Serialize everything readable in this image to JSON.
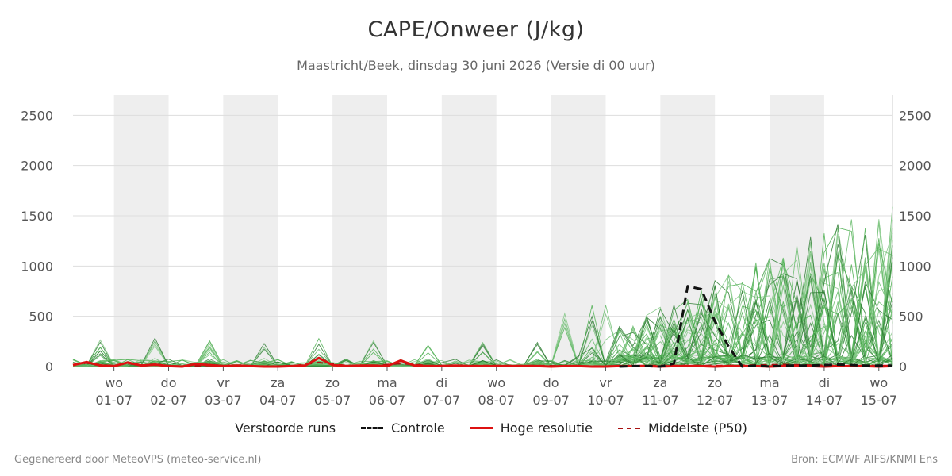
{
  "header": {
    "title": "CAPE/Onweer (J/kg)",
    "subtitle": "Maastricht/Beek, dinsdag 30 juni 2026 (Versie di 00 uur)"
  },
  "footer": {
    "left": "Gegenereerd door MeteoVPS (meteo-service.nl)",
    "right": "Bron: ECMWF AIFS/KNMI Ens"
  },
  "legend": [
    {
      "label": "Verstoorde runs",
      "color": "#5cb85c",
      "style": "thin"
    },
    {
      "label": "Controle",
      "color": "#111111",
      "style": "dashed"
    },
    {
      "label": "Hoge resolutie",
      "color": "#dd1111",
      "style": "solid"
    },
    {
      "label": "Middelste (P50)",
      "color": "#aa1111",
      "style": "dashed"
    }
  ],
  "colors": {
    "members": "#4caf50",
    "control": "#111111",
    "hires": "#dd1111",
    "median": "#aa1111",
    "shade": "#eeeeee",
    "grid": "#dddddd"
  },
  "chart_data": {
    "type": "line",
    "xlim": [
      0,
      15
    ],
    "ylim": [
      0,
      2700
    ],
    "grid": true,
    "yticks": [
      0,
      500,
      1000,
      1500,
      2000,
      2500
    ],
    "weekend_shading_days": [
      [
        0.75,
        1.75
      ],
      [
        2.75,
        3.75
      ],
      [
        4.75,
        5.75
      ],
      [
        6.75,
        7.75
      ],
      [
        8.75,
        9.75
      ],
      [
        10.75,
        11.75
      ],
      [
        12.75,
        13.75
      ]
    ],
    "x_day_labels": [
      {
        "x": 0.75,
        "day": "wo",
        "date": "01-07"
      },
      {
        "x": 1.75,
        "day": "do",
        "date": "02-07"
      },
      {
        "x": 2.75,
        "day": "vr",
        "date": "03-07"
      },
      {
        "x": 3.75,
        "day": "za",
        "date": "04-07"
      },
      {
        "x": 4.75,
        "day": "zo",
        "date": "05-07"
      },
      {
        "x": 5.75,
        "day": "ma",
        "date": "06-07"
      },
      {
        "x": 6.75,
        "day": "di",
        "date": "07-07"
      },
      {
        "x": 7.75,
        "day": "wo",
        "date": "08-07"
      },
      {
        "x": 8.75,
        "day": "do",
        "date": "09-07"
      },
      {
        "x": 9.75,
        "day": "vr",
        "date": "10-07"
      },
      {
        "x": 10.75,
        "day": "za",
        "date": "11-07"
      },
      {
        "x": 11.75,
        "day": "zo",
        "date": "12-07"
      },
      {
        "x": 12.75,
        "day": "ma",
        "date": "13-07"
      },
      {
        "x": 13.75,
        "day": "di",
        "date": "14-07"
      },
      {
        "x": 14.75,
        "day": "wo",
        "date": "15-07"
      }
    ],
    "series": [
      {
        "role": "hires",
        "x": [
          0,
          0.25,
          0.5,
          0.75,
          1,
          1.25,
          1.5,
          1.75,
          2,
          2.25,
          2.5,
          2.75,
          3,
          3.25,
          3.5,
          3.75,
          4,
          4.25,
          4.5,
          4.75,
          5,
          5.25,
          5.5,
          5.75,
          6,
          6.25,
          6.5,
          6.75,
          7,
          7.25,
          7.5,
          7.75,
          8,
          8.25,
          8.5,
          8.75,
          9,
          9.25,
          9.5,
          9.75,
          10,
          10.25,
          10.5,
          10.75,
          11,
          11.25,
          11.5,
          11.75,
          12,
          12.25,
          12.5,
          12.75,
          13,
          13.25,
          13.5,
          13.75,
          14,
          14.25,
          14.5,
          14.75,
          15
        ],
        "y": [
          15,
          45,
          10,
          5,
          40,
          10,
          20,
          5,
          0,
          25,
          15,
          5,
          10,
          5,
          0,
          0,
          5,
          10,
          85,
          15,
          5,
          10,
          10,
          5,
          60,
          10,
          5,
          5,
          10,
          5,
          5,
          5,
          5,
          5,
          5,
          0,
          5,
          5,
          0,
          0,
          5,
          5,
          5,
          0,
          5,
          5,
          5,
          0,
          5,
          5,
          5,
          0,
          5,
          5,
          5,
          0,
          5,
          5,
          5,
          0,
          5
        ]
      },
      {
        "role": "median",
        "x": [
          0,
          0.25,
          0.5,
          0.75,
          1,
          1.25,
          1.5,
          1.75,
          2,
          2.5,
          3,
          3.5,
          4,
          4.5,
          5,
          5.5,
          6,
          6.5,
          7,
          7.5,
          8,
          8.5,
          9,
          9.5,
          10,
          10.5,
          11,
          11.5,
          12,
          12.5,
          13,
          13.5,
          14,
          14.5,
          15
        ],
        "y": [
          20,
          35,
          15,
          10,
          30,
          15,
          15,
          5,
          5,
          10,
          10,
          5,
          5,
          40,
          10,
          10,
          30,
          10,
          10,
          10,
          10,
          10,
          5,
          5,
          5,
          10,
          10,
          10,
          10,
          15,
          20,
          15,
          10,
          10,
          10
        ]
      },
      {
        "role": "control",
        "x": [
          10,
          10.25,
          10.5,
          10.75,
          11,
          11.25,
          11.5,
          11.75,
          12,
          12.25,
          12.5,
          12.75,
          13,
          13.5,
          14,
          14.5,
          15
        ],
        "y": [
          0,
          5,
          5,
          0,
          30,
          800,
          770,
          450,
          200,
          0,
          10,
          0,
          10,
          10,
          20,
          10,
          10
        ]
      }
    ]
  }
}
